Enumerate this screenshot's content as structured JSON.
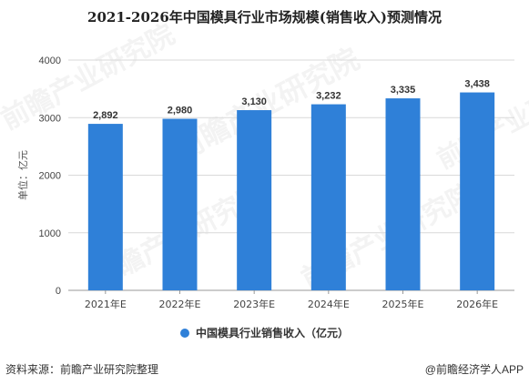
{
  "title": "2021-2026年中国模具行业市场规模(销售收入)预测情况",
  "footer": {
    "source": "资料来源：前瞻产业研究院整理",
    "credit": "@前瞻经济学人APP"
  },
  "watermark_text": "前瞻产业研究院",
  "colors": {
    "bar": "#2f80d8",
    "grid": "#d9d9d9",
    "axis": "#999999"
  },
  "chart_data": {
    "type": "bar",
    "categories": [
      "2021年E",
      "2022年E",
      "2023年E",
      "2024年E",
      "2025年E",
      "2026年E"
    ],
    "series": [
      {
        "name": "中国模具行业销售收入（亿元）",
        "values": [
          2892,
          2980,
          3130,
          3232,
          3335,
          3438
        ]
      }
    ],
    "data_labels": [
      "2,892",
      "2,980",
      "3,130",
      "3,232",
      "3,335",
      "3,438"
    ],
    "ylabel": "单位：亿元",
    "ylim": [
      0,
      4000
    ],
    "yticks": [
      0,
      1000,
      2000,
      3000,
      4000
    ],
    "grid": true,
    "legend_position": "bottom"
  }
}
